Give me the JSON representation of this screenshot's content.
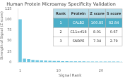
{
  "chart_data": {
    "type": "bar",
    "title": "Human Protein Microarray Specificity Validation",
    "xlabel": "Signal Rank",
    "ylabel": "Strength of Signal (Z score)",
    "x": [
      1,
      2,
      3,
      4,
      5,
      6,
      7,
      8,
      9,
      10,
      11,
      12,
      13,
      14,
      15,
      16,
      17,
      18,
      19,
      20,
      21,
      22,
      23,
      24,
      25
    ],
    "values": [
      100.85,
      8.01,
      7.34,
      5.2,
      4.5,
      4.0,
      3.6,
      3.2,
      2.9,
      2.6,
      2.4,
      2.2,
      2.0,
      1.9,
      1.8,
      1.7,
      1.65,
      1.6,
      1.55,
      1.5,
      1.45,
      1.4,
      1.35,
      1.3,
      1.25
    ],
    "color": "#6ec6e0",
    "xlim": [
      0.5,
      25
    ],
    "xticks": [
      1,
      10,
      20
    ],
    "ylim": [
      0,
      125
    ],
    "yticks": [
      0,
      25,
      50,
      75,
      100,
      125
    ],
    "grid": false,
    "table": [
      [
        "Rank",
        "Protein",
        "Z score",
        "S score"
      ],
      [
        "1",
        "CALB2",
        "100.85",
        "82.84"
      ],
      [
        "2",
        "C11orf18",
        "8.01",
        "0.67"
      ],
      [
        "3",
        "SNRPE",
        "7.34",
        "2.79"
      ]
    ]
  }
}
